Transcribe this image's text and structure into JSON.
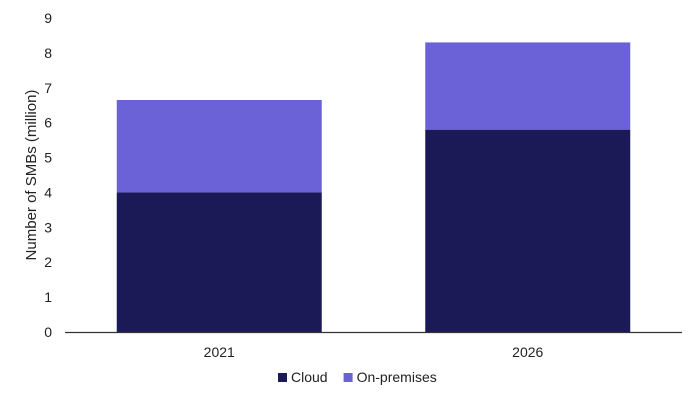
{
  "chart_data": {
    "type": "bar",
    "stacked": true,
    "categories": [
      "2021",
      "2026"
    ],
    "series": [
      {
        "name": "Cloud",
        "values": [
          4.0,
          5.8
        ],
        "color": "#1b1a57"
      },
      {
        "name": "On-premises",
        "values": [
          2.65,
          2.5
        ],
        "color": "#6a62d6"
      }
    ],
    "title": "",
    "xlabel": "",
    "ylabel": "Number of SMBs (million)",
    "ylim": [
      0,
      9
    ],
    "yticks": [
      "0",
      "1",
      "2",
      "3",
      "4",
      "5",
      "6",
      "7",
      "8",
      "9"
    ],
    "grid": false,
    "legend_position": "bottom-center"
  }
}
